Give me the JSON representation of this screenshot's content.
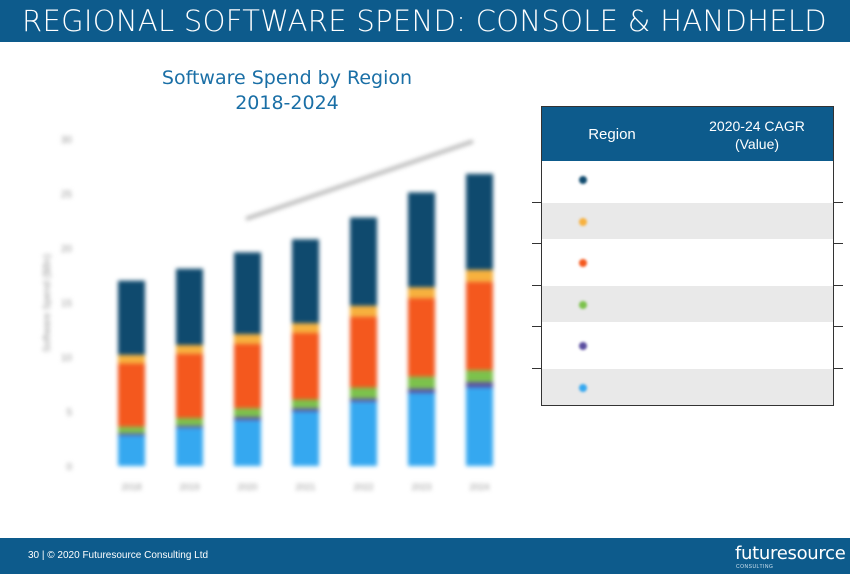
{
  "header": {
    "title": "REGIONAL SOFTWARE SPEND: CONSOLE & HANDHELD"
  },
  "chart_data": {
    "type": "bar",
    "stacked": true,
    "title_line1": "Software Spend by Region",
    "title_line2": "2018-2024",
    "ylabel": "Software Spend ($Bn)",
    "ylim": [
      0,
      30
    ],
    "yticks": [
      "0",
      "5",
      "10",
      "15",
      "20",
      "25",
      "30"
    ],
    "categories": [
      "2018",
      "2019",
      "2020",
      "2021",
      "2022",
      "2023",
      "2024"
    ],
    "series": [
      {
        "color": "#35a8f0",
        "values": [
          2.8,
          3.5,
          4.2,
          5.0,
          5.9,
          6.7,
          7.2
        ]
      },
      {
        "color": "#5b4fa0",
        "values": [
          0.2,
          0.2,
          0.3,
          0.3,
          0.3,
          0.4,
          0.5
        ]
      },
      {
        "color": "#7cc24c",
        "values": [
          0.6,
          0.7,
          0.8,
          0.8,
          1.0,
          1.1,
          1.1
        ]
      },
      {
        "color": "#f4581e",
        "values": [
          5.8,
          5.9,
          5.9,
          6.1,
          6.5,
          7.2,
          8.1
        ]
      },
      {
        "color": "#f7b13e",
        "values": [
          0.8,
          0.8,
          0.9,
          0.9,
          1.0,
          1.0,
          1.1
        ]
      },
      {
        "color": "#0f4a6e",
        "values": [
          6.8,
          7.0,
          7.5,
          7.7,
          8.1,
          8.7,
          8.8
        ]
      }
    ]
  },
  "cagr_table": {
    "header_region": "Region",
    "header_cagr_line1": "2020-24 CAGR",
    "header_cagr_line2": "(Value)",
    "rows": [
      {
        "color": "#0f4a6e"
      },
      {
        "color": "#f7b13e"
      },
      {
        "color": "#f4581e"
      },
      {
        "color": "#7cc24c"
      },
      {
        "color": "#5b4fa0"
      },
      {
        "color": "#35a8f0"
      }
    ]
  },
  "footer": {
    "page_info": "30  |  © 2020 Futuresource Consulting Ltd",
    "logo": "futuresource",
    "logo_sub": "CONSULTING"
  }
}
